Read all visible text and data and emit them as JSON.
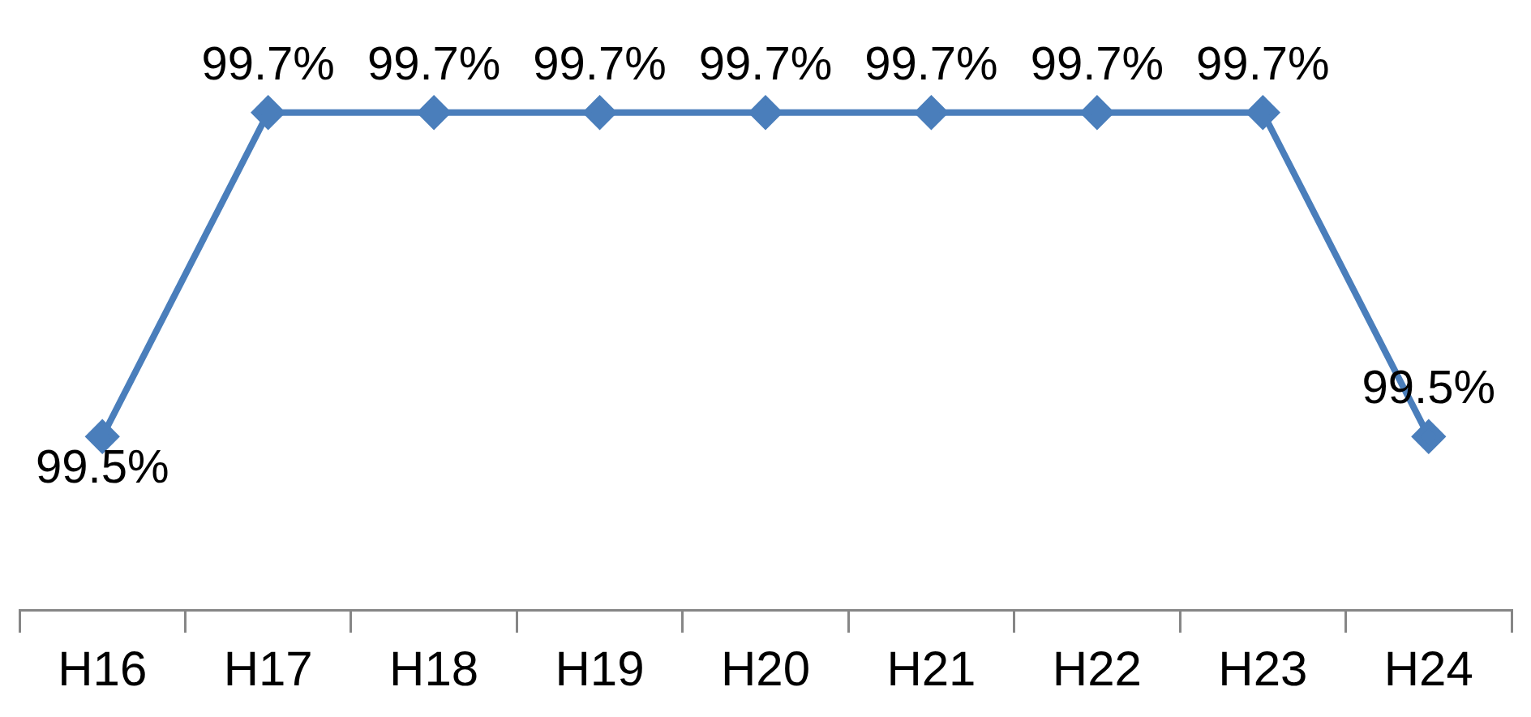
{
  "chart_data": {
    "type": "line",
    "categories": [
      "H16",
      "H17",
      "H18",
      "H19",
      "H20",
      "H21",
      "H22",
      "H23",
      "H24"
    ],
    "series": [
      {
        "color": "#4a7ebb",
        "values": [
          99.5,
          99.7,
          99.7,
          99.7,
          99.7,
          99.7,
          99.7,
          99.7,
          99.5
        ],
        "value_labels": [
          "99.5%",
          "99.7%",
          "99.7%",
          "99.7%",
          "99.7%",
          "99.7%",
          "99.7%",
          "99.7%",
          "99.5%"
        ]
      }
    ],
    "marker": "diamond",
    "line_style": "solid",
    "grid": false,
    "legend": false,
    "tick_labels": "x"
  }
}
